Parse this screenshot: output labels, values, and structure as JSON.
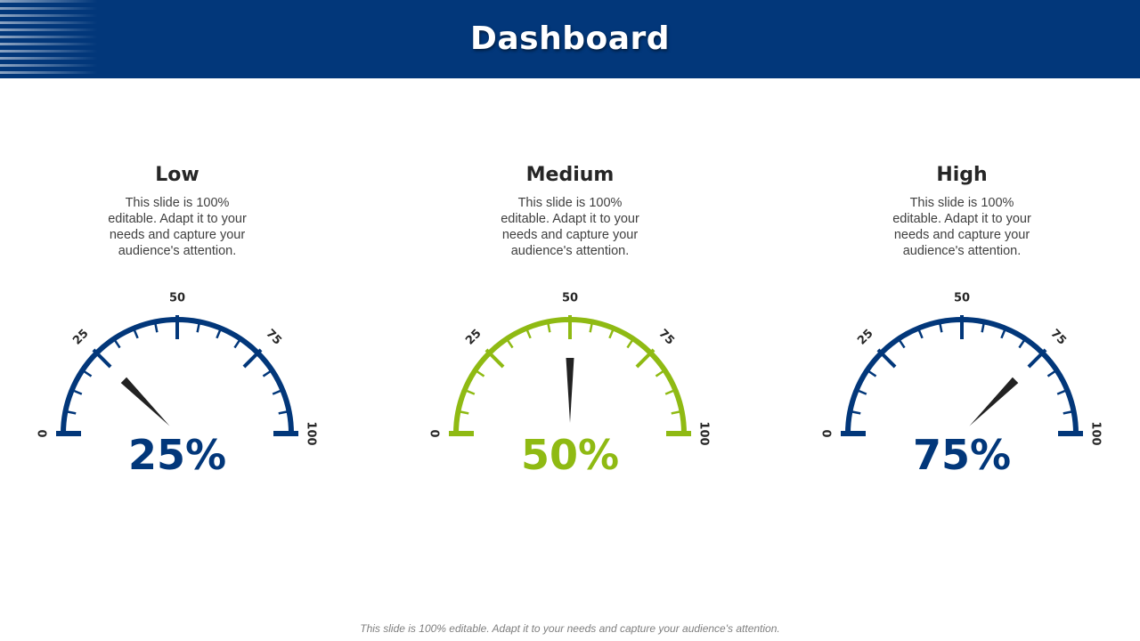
{
  "header": {
    "title": "Dashboard"
  },
  "gauges": [
    {
      "heading": "Low",
      "description": "This slide is 100% editable. Adapt it to your needs and capture your audience's attention.",
      "value": 25,
      "value_label": "25%",
      "color": "#02377a",
      "scale_labels": [
        "0",
        "25",
        "50",
        "75",
        "100"
      ]
    },
    {
      "heading": "Medium",
      "description": "This slide is 100% editable. Adapt it to your needs and capture your audience's attention.",
      "value": 50,
      "value_label": "50%",
      "color": "#8fba13",
      "scale_labels": [
        "0",
        "25",
        "50",
        "75",
        "100"
      ]
    },
    {
      "heading": "High",
      "description": "This slide is 100% editable. Adapt it to your needs and capture your audience's attention.",
      "value": 75,
      "value_label": "75%",
      "color": "#02377a",
      "scale_labels": [
        "0",
        "25",
        "50",
        "75",
        "100"
      ]
    }
  ],
  "needle_color": "#222222",
  "footer": {
    "note": "This slide is 100% editable. Adapt it to your needs and capture your audience's attention."
  }
}
